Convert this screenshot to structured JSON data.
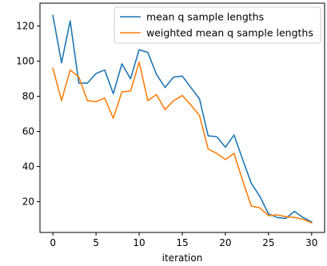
{
  "chart_data": {
    "type": "line",
    "title": "",
    "xlabel": "iteration",
    "ylabel": "",
    "xlim": [
      -1.5,
      31.5
    ],
    "ylim": [
      2.5,
      133
    ],
    "xticks": [
      0,
      5,
      10,
      15,
      20,
      25,
      30
    ],
    "yticks": [
      20,
      40,
      60,
      80,
      100,
      120
    ],
    "grid": false,
    "legend_position": "top-right",
    "x": [
      0,
      1,
      2,
      3,
      4,
      5,
      6,
      7,
      8,
      9,
      10,
      11,
      12,
      13,
      14,
      15,
      16,
      17,
      18,
      19,
      20,
      21,
      22,
      23,
      24,
      25,
      26,
      27,
      28,
      29,
      30
    ],
    "series": [
      {
        "name": "mean q sample lengths",
        "color": "#1f77b4",
        "values": [
          126,
          99,
          123,
          87.5,
          87.5,
          93,
          95,
          81.5,
          98.5,
          90,
          106.5,
          105,
          92.5,
          85,
          91,
          91.5,
          85,
          78.5,
          57.5,
          57,
          51,
          58,
          44,
          30.5,
          23,
          13,
          11,
          10.5,
          14.5,
          11,
          8.5
        ]
      },
      {
        "name": "weighted mean q sample lengths",
        "color": "#ff7f0e",
        "values": [
          96,
          77.5,
          95,
          91,
          77.5,
          77,
          79,
          67.5,
          82.5,
          83,
          99.5,
          77.5,
          81,
          72.5,
          77.5,
          80.5,
          75,
          69,
          50,
          47.5,
          44,
          47.5,
          32,
          17.5,
          16.5,
          12,
          12.5,
          11.5,
          11,
          10,
          8
        ]
      }
    ]
  }
}
